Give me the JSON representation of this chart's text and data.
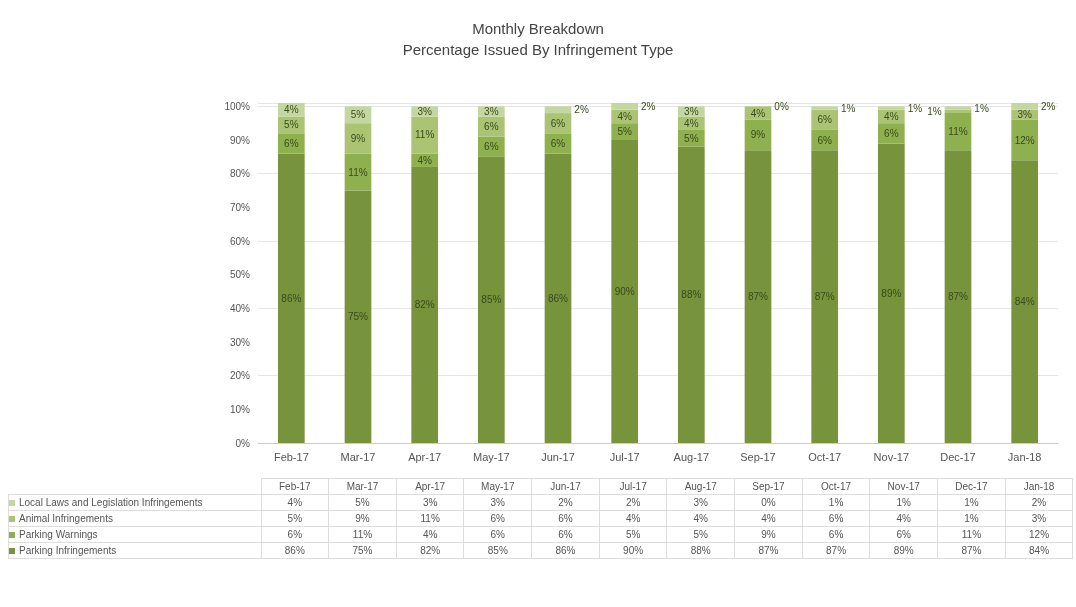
{
  "chart_data": {
    "type": "bar",
    "stacked": true,
    "title": "Monthly Breakdown",
    "subtitle": "Percentage Issued By Infringement Type",
    "categories": [
      "Feb-17",
      "Mar-17",
      "Apr-17",
      "May-17",
      "Jun-17",
      "Jul-17",
      "Aug-17",
      "Sep-17",
      "Oct-17",
      "Nov-17",
      "Dec-17",
      "Jan-18"
    ],
    "series": [
      {
        "name": "Parking Infringements",
        "color": "#77933c",
        "values": [
          86,
          75,
          82,
          85,
          86,
          90,
          88,
          87,
          87,
          89,
          87,
          84
        ],
        "value_labels": [
          "86%",
          "75%",
          "82%",
          "85%",
          "86%",
          "90%",
          "88%",
          "87%",
          "87%",
          "89%",
          "87%",
          "84%"
        ]
      },
      {
        "name": "Parking Warnings",
        "color": "#8fb04e",
        "values": [
          6,
          11,
          4,
          6,
          6,
          5,
          5,
          9,
          6,
          6,
          11,
          12
        ],
        "value_labels": [
          "6%",
          "11%",
          "4%",
          "6%",
          "6%",
          "5%",
          "5%",
          "9%",
          "6%",
          "6%",
          "11%",
          "12%"
        ]
      },
      {
        "name": "Animal Infringements",
        "color": "#aac474",
        "values": [
          5,
          9,
          11,
          6,
          6,
          4,
          4,
          4,
          6,
          4,
          1,
          3
        ],
        "value_labels": [
          "5%",
          "9%",
          "11%",
          "6%",
          "6%",
          "4%",
          "4%",
          "4%",
          "6%",
          "4%",
          "1%",
          "3%"
        ]
      },
      {
        "name": "Local Laws and Legislation Infringements",
        "color": "#c5d7a0",
        "values": [
          4,
          5,
          3,
          3,
          2,
          2,
          3,
          0,
          1,
          1,
          1,
          2
        ],
        "value_labels": [
          "4%",
          "5%",
          "3%",
          "3%",
          "2%",
          "2%",
          "3%",
          "0%",
          "1%",
          "1%",
          "1%",
          "2%"
        ]
      }
    ],
    "ylim": [
      0,
      101
    ],
    "yticks": [
      {
        "value": 0,
        "label": "0%"
      },
      {
        "value": 10,
        "label": "10%"
      },
      {
        "value": 20,
        "label": "20%"
      },
      {
        "value": 30,
        "label": "30%"
      },
      {
        "value": 40,
        "label": "40%"
      },
      {
        "value": 50,
        "label": "50%"
      },
      {
        "value": 60,
        "label": "60%"
      },
      {
        "value": 70,
        "label": "70%"
      },
      {
        "value": 80,
        "label": "80%"
      },
      {
        "value": 90,
        "label": "90%"
      },
      {
        "value": 100,
        "label": "100%"
      }
    ],
    "grid": "y",
    "legend": "bottom"
  }
}
